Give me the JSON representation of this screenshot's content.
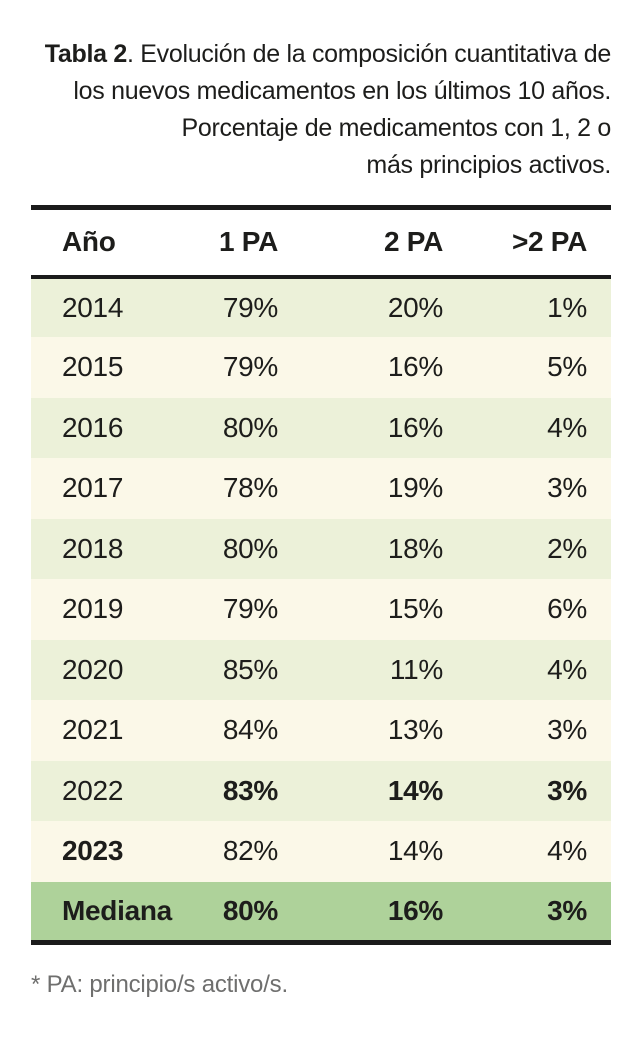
{
  "caption": {
    "bold": "Tabla 2",
    "lines": [
      ". Evolución de la composición cuantitativa de",
      "los nuevos medicamentos en los últimos 10 años.",
      "Porcentaje de medicamentos con 1, 2 o",
      "más principios activos."
    ]
  },
  "table": {
    "columns": [
      "Año",
      "1 PA",
      "2 PA",
      ">2 PA"
    ],
    "rows": [
      {
        "label": "2014",
        "pa1": "79%",
        "pa2": "20%",
        "gt2pa": "1%",
        "variant": "green",
        "label_bold": false,
        "values_bold": false
      },
      {
        "label": "2015",
        "pa1": "79%",
        "pa2": "16%",
        "gt2pa": "5%",
        "variant": "cream",
        "label_bold": false,
        "values_bold": false
      },
      {
        "label": "2016",
        "pa1": "80%",
        "pa2": "16%",
        "gt2pa": "4%",
        "variant": "green",
        "label_bold": false,
        "values_bold": false
      },
      {
        "label": "2017",
        "pa1": "78%",
        "pa2": "19%",
        "gt2pa": "3%",
        "variant": "cream",
        "label_bold": false,
        "values_bold": false
      },
      {
        "label": "2018",
        "pa1": "80%",
        "pa2": "18%",
        "gt2pa": "2%",
        "variant": "green",
        "label_bold": false,
        "values_bold": false
      },
      {
        "label": "2019",
        "pa1": "79%",
        "pa2": "15%",
        "gt2pa": "6%",
        "variant": "cream",
        "label_bold": false,
        "values_bold": false
      },
      {
        "label": "2020",
        "pa1": "85%",
        "pa2": "11%",
        "gt2pa": "4%",
        "variant": "green",
        "label_bold": false,
        "values_bold": false
      },
      {
        "label": "2021",
        "pa1": "84%",
        "pa2": "13%",
        "gt2pa": "3%",
        "variant": "cream",
        "label_bold": false,
        "values_bold": false
      },
      {
        "label": "2022",
        "pa1": "83%",
        "pa2": "14%",
        "gt2pa": "3%",
        "variant": "green",
        "label_bold": false,
        "values_bold": true
      },
      {
        "label": "2023",
        "pa1": "82%",
        "pa2": "14%",
        "gt2pa": "4%",
        "variant": "cream",
        "label_bold": true,
        "values_bold": false
      },
      {
        "label": "Mediana",
        "pa1": "80%",
        "pa2": "16%",
        "gt2pa": "3%",
        "variant": "median",
        "label_bold": true,
        "values_bold": true
      }
    ]
  },
  "footnote": "* PA: principio/s activo/s.",
  "colors": {
    "row_green": "#ecf1d9",
    "row_cream": "#fbf8e8",
    "row_median": "#aed29a",
    "rule": "#1b1b1b",
    "text": "#1d1d1b",
    "footnote_text": "#6f6f6e"
  }
}
